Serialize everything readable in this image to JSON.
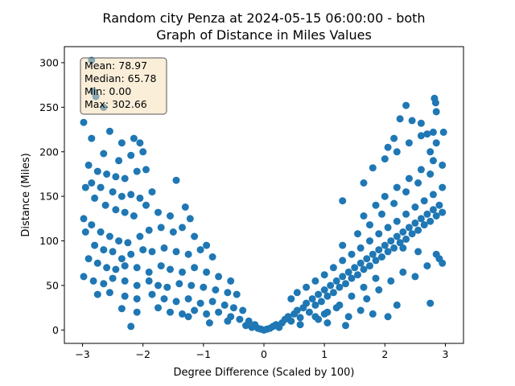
{
  "chart_data": {
    "type": "scatter",
    "title": "Random city Penza at 2024-05-15 06:00:00  - both",
    "subtitle": "Graph of Distance in Miles Values",
    "xlabel": "Degree Difference (Scaled by 100)",
    "ylabel": "Distance (Miles)",
    "xlim": [
      -3.3,
      3.3
    ],
    "ylim": [
      -15,
      318
    ],
    "xticks": [
      -3,
      -2,
      -1,
      0,
      1,
      2,
      3
    ],
    "yticks": [
      0,
      50,
      100,
      150,
      200,
      250,
      300
    ],
    "grid": false,
    "stats": [
      "Mean: 78.97",
      "Median: 65.78",
      "Min: 0.00",
      "Max: 302.66"
    ],
    "stats_position": "top-left",
    "marker_color": "#1f77b4",
    "points": [
      [
        -2.85,
        302.66
      ],
      [
        -2.82,
        268
      ],
      [
        -2.78,
        262
      ],
      [
        -2.65,
        250
      ],
      [
        -2.98,
        233
      ],
      [
        -2.85,
        215
      ],
      [
        -2.55,
        223
      ],
      [
        -2.35,
        210
      ],
      [
        -2.15,
        215
      ],
      [
        -2.05,
        210
      ],
      [
        -2.0,
        200
      ],
      [
        -2.2,
        196
      ],
      [
        -2.4,
        190
      ],
      [
        -2.65,
        198
      ],
      [
        -2.9,
        185
      ],
      [
        -2.75,
        178
      ],
      [
        -2.6,
        175
      ],
      [
        -2.45,
        172
      ],
      [
        -2.3,
        170
      ],
      [
        -2.1,
        178
      ],
      [
        -1.95,
        180
      ],
      [
        -2.85,
        165
      ],
      [
        -2.7,
        160
      ],
      [
        -2.5,
        155
      ],
      [
        -2.35,
        150
      ],
      [
        -2.2,
        152
      ],
      [
        -2.05,
        148
      ],
      [
        -1.85,
        155
      ],
      [
        -1.45,
        168
      ],
      [
        -2.95,
        160
      ],
      [
        -2.8,
        148
      ],
      [
        -2.62,
        140
      ],
      [
        -2.45,
        135
      ],
      [
        -2.3,
        132
      ],
      [
        -2.15,
        128
      ],
      [
        -1.95,
        140
      ],
      [
        -1.75,
        132
      ],
      [
        -1.55,
        128
      ],
      [
        -1.3,
        138
      ],
      [
        -1.22,
        125
      ],
      [
        -2.98,
        125
      ],
      [
        -2.85,
        118
      ],
      [
        -2.7,
        110
      ],
      [
        -2.55,
        105
      ],
      [
        -2.4,
        100
      ],
      [
        -2.25,
        98
      ],
      [
        -2.05,
        105
      ],
      [
        -1.9,
        112
      ],
      [
        -1.7,
        115
      ],
      [
        -1.5,
        110
      ],
      [
        -1.35,
        115
      ],
      [
        -1.15,
        105
      ],
      [
        -0.95,
        95
      ],
      [
        -2.95,
        110
      ],
      [
        -2.8,
        95
      ],
      [
        -2.65,
        90
      ],
      [
        -2.5,
        88
      ],
      [
        -2.35,
        80
      ],
      [
        -2.2,
        85
      ],
      [
        -2.0,
        90
      ],
      [
        -1.85,
        88
      ],
      [
        -1.65,
        92
      ],
      [
        -1.45,
        88
      ],
      [
        -1.25,
        85
      ],
      [
        -1.05,
        90
      ],
      [
        -0.85,
        82
      ],
      [
        -2.9,
        80
      ],
      [
        -2.75,
        75
      ],
      [
        -2.6,
        70
      ],
      [
        -2.45,
        68
      ],
      [
        -2.3,
        72
      ],
      [
        -2.1,
        70
      ],
      [
        -1.9,
        65
      ],
      [
        -1.7,
        72
      ],
      [
        -1.55,
        68
      ],
      [
        -1.35,
        65
      ],
      [
        -1.15,
        70
      ],
      [
        -0.95,
        65
      ],
      [
        -0.75,
        60
      ],
      [
        -0.55,
        55
      ],
      [
        -2.98,
        60
      ],
      [
        -2.82,
        55
      ],
      [
        -2.65,
        52
      ],
      [
        -2.5,
        58
      ],
      [
        -2.3,
        55
      ],
      [
        -2.1,
        50
      ],
      [
        -1.9,
        55
      ],
      [
        -1.75,
        50
      ],
      [
        -1.6,
        48
      ],
      [
        -1.4,
        52
      ],
      [
        -1.2,
        50
      ],
      [
        -1.0,
        48
      ],
      [
        -0.8,
        45
      ],
      [
        -0.6,
        42
      ],
      [
        -0.45,
        40
      ],
      [
        -2.75,
        40
      ],
      [
        -2.55,
        42
      ],
      [
        -2.3,
        38
      ],
      [
        -2.1,
        35
      ],
      [
        -1.85,
        40
      ],
      [
        -1.65,
        35
      ],
      [
        -1.45,
        32
      ],
      [
        -1.25,
        35
      ],
      [
        -1.05,
        30
      ],
      [
        -0.85,
        32
      ],
      [
        -0.65,
        28
      ],
      [
        -0.5,
        25
      ],
      [
        -0.35,
        22
      ],
      [
        -2.35,
        24
      ],
      [
        -2.1,
        20
      ],
      [
        -1.75,
        25
      ],
      [
        -1.55,
        20
      ],
      [
        -1.35,
        18
      ],
      [
        -1.15,
        22
      ],
      [
        -0.95,
        18
      ],
      [
        -0.75,
        20
      ],
      [
        -0.55,
        15
      ],
      [
        -0.4,
        12
      ],
      [
        -0.25,
        10
      ],
      [
        -0.15,
        6
      ],
      [
        -2.2,
        4
      ],
      [
        -1.25,
        15
      ],
      [
        -0.9,
        8
      ],
      [
        -0.6,
        10
      ],
      [
        -0.3,
        5
      ],
      [
        -0.2,
        3
      ],
      [
        -0.1,
        2
      ],
      [
        -0.05,
        1
      ],
      [
        0.0,
        0.0
      ],
      [
        0.05,
        1
      ],
      [
        0.1,
        2
      ],
      [
        0.15,
        4
      ],
      [
        0.2,
        6
      ],
      [
        0.25,
        3
      ],
      [
        0.3,
        8
      ],
      [
        0.35,
        12
      ],
      [
        0.4,
        15
      ],
      [
        0.45,
        10
      ],
      [
        0.5,
        18
      ],
      [
        0.55,
        22
      ],
      [
        0.6,
        14
      ],
      [
        0.65,
        25
      ],
      [
        0.7,
        30
      ],
      [
        0.75,
        20
      ],
      [
        0.8,
        35
      ],
      [
        0.85,
        28
      ],
      [
        0.9,
        40
      ],
      [
        0.95,
        32
      ],
      [
        1.0,
        45
      ],
      [
        1.05,
        38
      ],
      [
        1.1,
        50
      ],
      [
        1.15,
        42
      ],
      [
        1.2,
        55
      ],
      [
        1.25,
        48
      ],
      [
        1.3,
        60
      ],
      [
        1.35,
        52
      ],
      [
        1.4,
        65
      ],
      [
        1.45,
        58
      ],
      [
        1.5,
        70
      ],
      [
        1.55,
        62
      ],
      [
        1.6,
        75
      ],
      [
        1.65,
        68
      ],
      [
        1.7,
        80
      ],
      [
        1.75,
        72
      ],
      [
        1.8,
        85
      ],
      [
        1.85,
        78
      ],
      [
        1.9,
        90
      ],
      [
        1.95,
        82
      ],
      [
        2.0,
        95
      ],
      [
        2.05,
        88
      ],
      [
        2.1,
        100
      ],
      [
        2.15,
        92
      ],
      [
        2.2,
        105
      ],
      [
        2.25,
        98
      ],
      [
        2.3,
        110
      ],
      [
        2.35,
        102
      ],
      [
        2.4,
        115
      ],
      [
        2.45,
        108
      ],
      [
        2.5,
        120
      ],
      [
        2.55,
        112
      ],
      [
        2.6,
        125
      ],
      [
        2.65,
        118
      ],
      [
        2.7,
        130
      ],
      [
        2.75,
        122
      ],
      [
        2.8,
        135
      ],
      [
        2.85,
        128
      ],
      [
        2.9,
        140
      ],
      [
        2.95,
        132
      ],
      [
        0.45,
        35
      ],
      [
        0.55,
        42
      ],
      [
        0.7,
        48
      ],
      [
        0.85,
        55
      ],
      [
        1.0,
        62
      ],
      [
        1.15,
        70
      ],
      [
        1.3,
        78
      ],
      [
        1.45,
        85
      ],
      [
        1.6,
        92
      ],
      [
        1.75,
        100
      ],
      [
        1.9,
        108
      ],
      [
        2.05,
        115
      ],
      [
        2.2,
        122
      ],
      [
        2.35,
        130
      ],
      [
        2.5,
        138
      ],
      [
        2.65,
        145
      ],
      [
        2.8,
        152
      ],
      [
        2.95,
        160
      ],
      [
        1.0,
        18
      ],
      [
        1.2,
        25
      ],
      [
        1.4,
        15
      ],
      [
        1.6,
        22
      ],
      [
        1.8,
        18
      ],
      [
        2.05,
        15
      ],
      [
        2.2,
        28
      ],
      [
        1.35,
        5
      ],
      [
        1.05,
        8
      ],
      [
        0.6,
        6
      ],
      [
        0.9,
        12
      ],
      [
        1.7,
        35
      ],
      [
        1.9,
        45
      ],
      [
        2.1,
        55
      ],
      [
        2.3,
        65
      ],
      [
        2.5,
        60
      ],
      [
        2.7,
        72
      ],
      [
        2.9,
        80
      ],
      [
        1.3,
        95
      ],
      [
        1.55,
        108
      ],
      [
        1.75,
        118
      ],
      [
        1.95,
        130
      ],
      [
        2.15,
        142
      ],
      [
        2.35,
        155
      ],
      [
        2.55,
        165
      ],
      [
        2.75,
        175
      ],
      [
        2.95,
        185
      ],
      [
        1.65,
        128
      ],
      [
        1.85,
        140
      ],
      [
        2.0,
        150
      ],
      [
        2.2,
        160
      ],
      [
        2.4,
        170
      ],
      [
        2.6,
        180
      ],
      [
        2.8,
        190
      ],
      [
        1.3,
        145
      ],
      [
        1.65,
        165
      ],
      [
        1.8,
        182
      ],
      [
        2.0,
        192
      ],
      [
        2.2,
        200
      ],
      [
        2.4,
        210
      ],
      [
        2.6,
        218
      ],
      [
        2.8,
        222
      ],
      [
        2.97,
        222
      ],
      [
        2.05,
        205
      ],
      [
        2.15,
        215
      ],
      [
        2.25,
        237
      ],
      [
        2.35,
        252
      ],
      [
        2.45,
        235
      ],
      [
        2.6,
        232
      ],
      [
        2.7,
        220
      ],
      [
        2.82,
        260
      ],
      [
        2.84,
        255
      ],
      [
        2.85,
        245
      ],
      [
        2.75,
        200
      ],
      [
        2.85,
        210
      ],
      [
        2.95,
        75
      ],
      [
        2.75,
        30
      ],
      [
        2.85,
        85
      ],
      [
        2.55,
        88
      ],
      [
        2.3,
        92
      ],
      [
        1.85,
        58
      ],
      [
        1.65,
        48
      ],
      [
        1.45,
        38
      ],
      [
        1.25,
        28
      ],
      [
        1.05,
        20
      ],
      [
        0.85,
        15
      ]
    ]
  }
}
